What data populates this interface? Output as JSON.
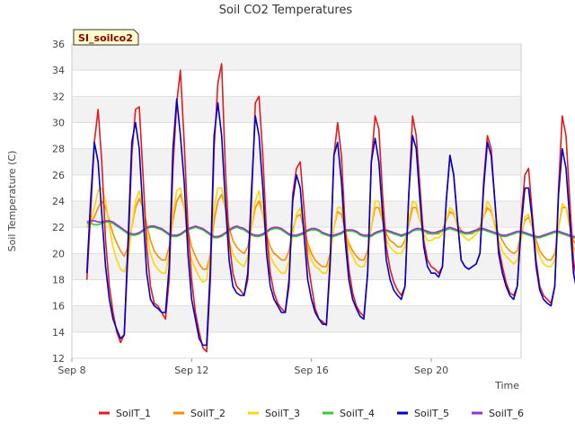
{
  "chart_data": {
    "type": "line",
    "title": "Soil CO2 Temperatures",
    "badge": "SI_soilco2",
    "xlabel": "Time",
    "ylabel": "Soil Temperature (C)",
    "ylim": [
      12,
      36
    ],
    "yticks": [
      12,
      14,
      16,
      18,
      20,
      22,
      24,
      26,
      28,
      30,
      32,
      34,
      36
    ],
    "xlim": [
      "2023-09-08",
      "2023-09-23"
    ],
    "xticks": [
      {
        "date": "2023-09-08",
        "label": "Sep 8"
      },
      {
        "date": "2023-09-12",
        "label": "Sep 12"
      },
      {
        "date": "2023-09-16",
        "label": "Sep 16"
      },
      {
        "date": "2023-09-20",
        "label": "Sep 20"
      }
    ],
    "grid": true,
    "legend_position": "bottom",
    "x_start": "2023-09-08",
    "sample_interval_hours": 3,
    "series": [
      {
        "name": "SoilT_1",
        "color": "#e41a1c",
        "values": [
          18.0,
          23.0,
          28.5,
          31.0,
          27.0,
          21.0,
          17.5,
          15.5,
          14.0,
          13.2,
          13.8,
          20.0,
          27.5,
          31.0,
          31.2,
          26.0,
          20.5,
          17.5,
          16.2,
          16.0,
          15.5,
          15.0,
          18.0,
          26.5,
          31.5,
          34.0,
          28.5,
          22.0,
          18.0,
          15.5,
          14.0,
          12.8,
          12.5,
          18.0,
          28.0,
          33.0,
          34.5,
          26.5,
          21.0,
          18.5,
          17.5,
          17.2,
          16.8,
          18.0,
          24.0,
          31.5,
          32.0,
          27.5,
          21.5,
          18.5,
          17.0,
          16.2,
          15.8,
          15.5,
          17.5,
          24.5,
          26.5,
          27.0,
          23.5,
          19.5,
          17.5,
          15.8,
          15.0,
          14.8,
          14.5,
          19.0,
          27.5,
          30.0,
          27.5,
          22.0,
          18.8,
          17.0,
          16.0,
          15.5,
          15.2,
          18.5,
          27.0,
          30.5,
          29.5,
          24.5,
          20.5,
          18.8,
          17.8,
          17.2,
          16.8,
          17.5,
          24.5,
          30.5,
          29.0,
          25.0,
          21.0,
          19.5,
          19.0,
          18.8,
          18.5,
          19.0,
          24.0,
          27.5,
          26.0,
          22.5,
          19.5,
          19.0,
          18.8,
          19.0,
          19.2,
          20.0,
          25.5,
          29.0,
          28.0,
          24.0,
          20.5,
          19.0,
          17.8,
          17.0,
          16.8,
          17.5,
          22.5,
          26.0,
          26.5,
          23.0,
          19.5,
          17.5,
          16.8,
          16.5,
          16.2,
          17.5,
          25.0,
          30.5,
          29.0,
          24.0,
          19.5,
          17.5,
          16.8,
          16.5,
          16.2,
          13.2,
          17.0,
          25.5,
          27.8,
          24.5,
          19.5,
          17.0,
          16.5
        ]
      },
      {
        "name": "SoilT_2",
        "color": "#ff8c00",
        "values": [
          22.0,
          22.3,
          22.8,
          23.5,
          24.0,
          23.5,
          22.5,
          21.5,
          20.8,
          20.2,
          19.8,
          20.5,
          22.0,
          23.5,
          24.2,
          23.5,
          22.2,
          21.0,
          20.2,
          19.8,
          19.5,
          19.5,
          20.5,
          22.5,
          24.0,
          24.5,
          23.5,
          21.8,
          20.5,
          19.8,
          19.2,
          18.8,
          18.8,
          20.0,
          22.5,
          24.0,
          24.5,
          23.5,
          22.0,
          21.0,
          20.5,
          20.2,
          20.0,
          20.5,
          22.0,
          23.5,
          24.0,
          23.0,
          21.5,
          20.5,
          20.0,
          19.8,
          19.5,
          19.5,
          20.2,
          21.8,
          22.8,
          23.0,
          22.0,
          20.8,
          20.0,
          19.5,
          19.2,
          19.0,
          19.0,
          20.0,
          22.0,
          23.2,
          23.0,
          21.8,
          20.8,
          20.2,
          19.8,
          19.5,
          19.5,
          20.2,
          22.0,
          23.5,
          23.5,
          22.5,
          21.5,
          21.0,
          20.8,
          20.5,
          20.5,
          21.0,
          22.2,
          23.5,
          23.5,
          22.5,
          21.8,
          21.5,
          21.5,
          21.5,
          21.5,
          21.8,
          22.5,
          23.2,
          23.0,
          22.2,
          21.8,
          21.5,
          21.5,
          21.5,
          21.8,
          22.0,
          22.8,
          23.5,
          23.2,
          22.2,
          21.5,
          21.0,
          20.5,
          20.2,
          20.0,
          20.2,
          21.5,
          22.5,
          22.8,
          22.0,
          21.0,
          20.2,
          19.8,
          19.5,
          19.5,
          20.0,
          22.0,
          23.5,
          23.5,
          22.2,
          21.0,
          20.5,
          20.0,
          19.8,
          19.5,
          19.2,
          20.0,
          22.0,
          23.0,
          22.0,
          21.0,
          20.0,
          19.5
        ]
      },
      {
        "name": "SoilT_3",
        "color": "#ffd700",
        "values": [
          22.0,
          22.5,
          23.5,
          24.8,
          25.0,
          24.0,
          22.0,
          20.5,
          19.5,
          18.8,
          18.6,
          19.5,
          22.0,
          24.0,
          24.8,
          23.5,
          21.5,
          20.0,
          19.2,
          18.8,
          18.5,
          18.5,
          20.0,
          23.0,
          24.8,
          25.0,
          23.5,
          21.0,
          19.5,
          18.8,
          18.2,
          17.8,
          18.0,
          20.0,
          23.5,
          25.0,
          25.0,
          23.5,
          21.0,
          20.0,
          19.5,
          19.2,
          19.0,
          19.8,
          22.0,
          24.0,
          24.8,
          23.0,
          21.0,
          19.8,
          19.2,
          18.8,
          18.5,
          18.5,
          19.5,
          21.5,
          23.0,
          23.5,
          22.0,
          20.5,
          19.5,
          19.0,
          18.8,
          18.5,
          18.5,
          19.5,
          22.0,
          23.5,
          23.5,
          22.0,
          20.5,
          19.8,
          19.2,
          19.0,
          19.0,
          19.8,
          22.0,
          24.0,
          24.0,
          22.5,
          21.0,
          20.5,
          20.2,
          20.0,
          20.0,
          20.5,
          22.5,
          24.0,
          23.8,
          22.5,
          21.5,
          21.0,
          21.0,
          21.2,
          21.2,
          21.5,
          22.5,
          23.5,
          23.2,
          22.0,
          21.5,
          21.2,
          21.0,
          21.2,
          21.5,
          21.8,
          22.8,
          24.0,
          23.5,
          22.0,
          21.0,
          20.2,
          19.8,
          19.5,
          19.2,
          19.5,
          21.0,
          22.8,
          23.0,
          22.0,
          20.5,
          19.8,
          19.2,
          19.0,
          19.0,
          19.5,
          22.0,
          23.8,
          23.5,
          22.0,
          20.5,
          19.8,
          19.2,
          19.0,
          18.8,
          18.5,
          19.5,
          22.5,
          23.5,
          22.0,
          20.5,
          19.8,
          19.5
        ]
      },
      {
        "name": "SoilT_4",
        "color": "#32cd32",
        "values": [
          22.3,
          22.3,
          22.2,
          22.2,
          22.3,
          22.4,
          22.4,
          22.3,
          22.1,
          21.9,
          21.7,
          21.5,
          21.4,
          21.4,
          21.5,
          21.7,
          21.9,
          22.0,
          22.0,
          21.9,
          21.8,
          21.6,
          21.4,
          21.3,
          21.3,
          21.4,
          21.6,
          21.8,
          21.9,
          22.0,
          21.9,
          21.8,
          21.6,
          21.4,
          21.2,
          21.2,
          21.3,
          21.5,
          21.7,
          21.9,
          22.0,
          21.9,
          21.8,
          21.6,
          21.4,
          21.3,
          21.3,
          21.4,
          21.6,
          21.8,
          21.9,
          21.9,
          21.8,
          21.6,
          21.4,
          21.3,
          21.3,
          21.4,
          21.5,
          21.7,
          21.8,
          21.8,
          21.7,
          21.5,
          21.4,
          21.3,
          21.3,
          21.4,
          21.5,
          21.7,
          21.7,
          21.7,
          21.6,
          21.4,
          21.3,
          21.3,
          21.3,
          21.5,
          21.6,
          21.7,
          21.7,
          21.6,
          21.5,
          21.4,
          21.3,
          21.4,
          21.5,
          21.7,
          21.8,
          21.8,
          21.7,
          21.6,
          21.5,
          21.5,
          21.6,
          21.7,
          21.8,
          21.9,
          21.8,
          21.7,
          21.6,
          21.5,
          21.5,
          21.6,
          21.7,
          21.8,
          21.8,
          21.7,
          21.6,
          21.5,
          21.4,
          21.3,
          21.3,
          21.4,
          21.5,
          21.6,
          21.6,
          21.5,
          21.4,
          21.3,
          21.2,
          21.2,
          21.3,
          21.4,
          21.5,
          21.6,
          21.6,
          21.5,
          21.4,
          21.3,
          21.2,
          21.2,
          21.3,
          21.4,
          21.4,
          21.3,
          21.2,
          21.2,
          21.3,
          21.4,
          21.4
        ]
      },
      {
        "name": "SoilT_5",
        "color": "#0000cd",
        "values": [
          18.5,
          24.0,
          28.5,
          27.0,
          23.0,
          19.0,
          16.5,
          15.0,
          14.2,
          13.5,
          13.8,
          21.0,
          28.5,
          30.0,
          28.0,
          23.0,
          18.5,
          16.5,
          16.0,
          15.8,
          15.5,
          15.5,
          19.0,
          28.0,
          31.8,
          29.0,
          25.5,
          20.0,
          16.5,
          15.0,
          13.5,
          13.0,
          13.0,
          19.0,
          29.0,
          31.5,
          29.0,
          24.0,
          19.5,
          17.5,
          17.0,
          16.8,
          16.8,
          18.5,
          25.0,
          30.5,
          29.0,
          25.0,
          20.0,
          17.5,
          16.5,
          16.0,
          15.5,
          15.5,
          18.0,
          24.0,
          26.0,
          25.0,
          21.5,
          18.0,
          16.5,
          15.5,
          15.0,
          14.6,
          14.6,
          19.5,
          27.5,
          28.5,
          25.5,
          21.0,
          18.0,
          16.5,
          15.8,
          15.2,
          15.0,
          18.5,
          27.0,
          28.8,
          27.0,
          23.0,
          19.5,
          18.0,
          17.2,
          16.8,
          16.5,
          17.5,
          24.5,
          29.0,
          28.0,
          24.0,
          20.5,
          19.0,
          18.5,
          18.5,
          18.2,
          19.0,
          24.0,
          27.5,
          26.0,
          22.5,
          19.5,
          19.0,
          18.8,
          19.0,
          19.2,
          20.0,
          25.0,
          28.5,
          27.5,
          24.0,
          20.0,
          18.5,
          17.5,
          16.8,
          16.5,
          17.5,
          22.0,
          25.0,
          25.0,
          22.5,
          19.0,
          17.2,
          16.5,
          16.2,
          16.0,
          17.5,
          24.5,
          28.0,
          26.5,
          22.5,
          18.5,
          17.0,
          16.5,
          16.2,
          16.0,
          13.5,
          17.0,
          25.5,
          27.0,
          24.0,
          19.0,
          16.8,
          16.5
        ]
      },
      {
        "name": "SoilT_6",
        "color": "#9932cc",
        "values": [
          22.4,
          22.5,
          22.5,
          22.4,
          22.4,
          22.5,
          22.5,
          22.4,
          22.2,
          22.0,
          21.8,
          21.6,
          21.5,
          21.5,
          21.6,
          21.8,
          22.0,
          22.1,
          22.1,
          22.0,
          21.9,
          21.7,
          21.5,
          21.4,
          21.4,
          21.5,
          21.7,
          21.9,
          22.0,
          22.1,
          22.0,
          21.9,
          21.7,
          21.5,
          21.3,
          21.3,
          21.4,
          21.6,
          21.8,
          22.0,
          22.1,
          22.0,
          21.9,
          21.7,
          21.5,
          21.4,
          21.4,
          21.5,
          21.7,
          21.9,
          22.0,
          22.0,
          21.9,
          21.7,
          21.5,
          21.4,
          21.4,
          21.5,
          21.6,
          21.8,
          21.9,
          21.9,
          21.8,
          21.6,
          21.5,
          21.4,
          21.4,
          21.5,
          21.6,
          21.8,
          21.8,
          21.8,
          21.7,
          21.5,
          21.4,
          21.4,
          21.4,
          21.6,
          21.7,
          21.8,
          21.8,
          21.7,
          21.6,
          21.5,
          21.4,
          21.5,
          21.6,
          21.8,
          21.9,
          21.9,
          21.8,
          21.7,
          21.6,
          21.6,
          21.7,
          21.8,
          21.9,
          22.0,
          21.9,
          21.8,
          21.7,
          21.6,
          21.6,
          21.7,
          21.8,
          21.9,
          21.9,
          21.8,
          21.7,
          21.6,
          21.5,
          21.4,
          21.4,
          21.5,
          21.6,
          21.7,
          21.7,
          21.6,
          21.5,
          21.4,
          21.3,
          21.3,
          21.4,
          21.5,
          21.6,
          21.7,
          21.7,
          21.6,
          21.5,
          21.4,
          21.3,
          21.3,
          21.4,
          21.5,
          21.5,
          21.4,
          21.3,
          21.3,
          21.4,
          21.5,
          21.5
        ]
      }
    ]
  }
}
